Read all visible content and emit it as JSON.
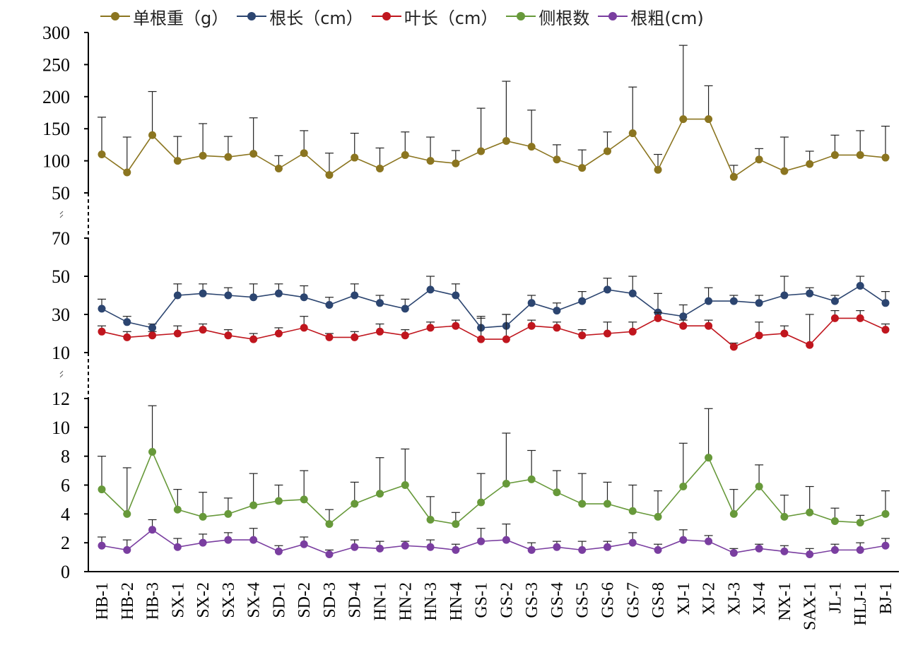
{
  "legend": [
    {
      "label": "单根重（g）",
      "color": "#8B7520"
    },
    {
      "label": "根长（cm）",
      "color": "#2C4570"
    },
    {
      "label": "叶长（cm）",
      "color": "#C0161E"
    },
    {
      "label": "侧根数",
      "color": "#67993A"
    },
    {
      "label": "根粗(cm)",
      "color": "#7A3EA0"
    }
  ],
  "chart_data": {
    "type": "line",
    "categories": [
      "HB-1",
      "HB-2",
      "HB-3",
      "SX-1",
      "SX-2",
      "SX-3",
      "SX-4",
      "SD-1",
      "SD-2",
      "SD-3",
      "SD-4",
      "HN-1",
      "HN-2",
      "HN-3",
      "HN-4",
      "GS-1",
      "GS-2",
      "GS-3",
      "GS-4",
      "GS-5",
      "GS-6",
      "GS-7",
      "GS-8",
      "XJ-1",
      "XJ-2",
      "XJ-3",
      "XJ-4",
      "NX-1",
      "SAX-1",
      "JL-1",
      "HLJ-1",
      "BJ-1"
    ],
    "panels": [
      {
        "ylim": [
          50,
          300
        ],
        "yticks": [
          "300",
          "250",
          "200",
          "150",
          "100",
          "50"
        ],
        "series": [
          {
            "name": "单根重（g）",
            "color": "#8B7520",
            "values": [
              110,
              82,
              140,
              100,
              108,
              106,
              111,
              88,
              112,
              78,
              105,
              88,
              109,
              100,
              96,
              115,
              131,
              122,
              102,
              89,
              115,
              143,
              86,
              165,
              165,
              75,
              102,
              84,
              95,
              109,
              109,
              105
            ],
            "errors": [
              58,
              55,
              68,
              38,
              50,
              32,
              56,
              20,
              35,
              34,
              38,
              32,
              36,
              37,
              20,
              67,
              93,
              57,
              23,
              28,
              30,
              72,
              24,
              115,
              52,
              18,
              17,
              53,
              20,
              31,
              38,
              49
            ]
          }
        ]
      },
      {
        "ylim": [
          10,
          70
        ],
        "yticks": [
          "70",
          "50",
          "30",
          "10"
        ],
        "series": [
          {
            "name": "根长（cm）",
            "color": "#2C4570",
            "values": [
              33,
              26,
              23,
              40,
              41,
              40,
              39,
              41,
              39,
              35,
              40,
              36,
              33,
              43,
              40,
              23,
              24,
              36,
              32,
              37,
              43,
              41,
              31,
              29,
              37,
              37,
              36,
              40,
              41,
              37,
              45,
              36
            ],
            "errors": [
              5,
              3,
              2,
              6,
              5,
              4,
              7,
              5,
              6,
              4,
              6,
              4,
              5,
              7,
              6,
              5,
              6,
              4,
              4,
              5,
              6,
              9,
              10,
              6,
              7,
              3,
              4,
              10,
              3,
              3,
              5,
              6
            ]
          },
          {
            "name": "叶长（cm）",
            "color": "#C0161E",
            "values": [
              21,
              18,
              19,
              20,
              22,
              19,
              17,
              20,
              23,
              18,
              18,
              21,
              19,
              23,
              24,
              17,
              17,
              24,
              23,
              19,
              20,
              21,
              28,
              24,
              24,
              13,
              19,
              20,
              14,
              28,
              28,
              22
            ],
            "errors": [
              3,
              3,
              2,
              4,
              3,
              3,
              3,
              3,
              6,
              2,
              3,
              4,
              3,
              3,
              3,
              12,
              13,
              3,
              3,
              3,
              6,
              5,
              3,
              3,
              3,
              2,
              7,
              4,
              16,
              4,
              4,
              3
            ]
          }
        ]
      },
      {
        "ylim": [
          0,
          12
        ],
        "yticks": [
          "12",
          "10",
          "8",
          "6",
          "4",
          "2",
          "0"
        ],
        "series": [
          {
            "name": "侧根数",
            "color": "#67993A",
            "values": [
              5.7,
              4.0,
              8.3,
              4.3,
              3.8,
              4.0,
              4.6,
              4.9,
              5.0,
              3.3,
              4.7,
              5.4,
              6.0,
              3.6,
              3.3,
              4.8,
              6.1,
              6.4,
              5.5,
              4.7,
              4.7,
              4.2,
              3.8,
              5.9,
              7.9,
              4.0,
              5.9,
              3.8,
              4.1,
              3.5,
              3.4,
              4.0
            ],
            "errors": [
              2.3,
              3.2,
              3.2,
              1.4,
              1.7,
              1.1,
              2.2,
              1.1,
              2.0,
              1.0,
              1.5,
              2.5,
              2.5,
              1.6,
              0.8,
              2.0,
              3.5,
              2.0,
              1.5,
              2.1,
              1.5,
              1.8,
              1.8,
              3.0,
              3.4,
              1.7,
              1.5,
              1.5,
              1.8,
              0.9,
              0.5,
              1.6
            ]
          },
          {
            "name": "根粗(cm)",
            "color": "#7A3EA0",
            "values": [
              1.8,
              1.5,
              2.9,
              1.7,
              2.0,
              2.2,
              2.2,
              1.4,
              1.9,
              1.2,
              1.7,
              1.6,
              1.8,
              1.7,
              1.5,
              2.1,
              2.2,
              1.5,
              1.7,
              1.5,
              1.7,
              2.0,
              1.5,
              2.2,
              2.1,
              1.3,
              1.6,
              1.4,
              1.2,
              1.5,
              1.5,
              1.8
            ],
            "errors": [
              0.6,
              0.7,
              0.7,
              0.6,
              0.6,
              0.5,
              0.8,
              0.4,
              0.5,
              0.3,
              0.5,
              0.5,
              0.3,
              0.5,
              0.4,
              0.9,
              1.1,
              0.5,
              0.4,
              0.6,
              0.4,
              0.7,
              0.4,
              0.7,
              0.4,
              0.3,
              0.3,
              0.4,
              0.4,
              0.4,
              0.5,
              0.5
            ]
          }
        ]
      }
    ]
  }
}
